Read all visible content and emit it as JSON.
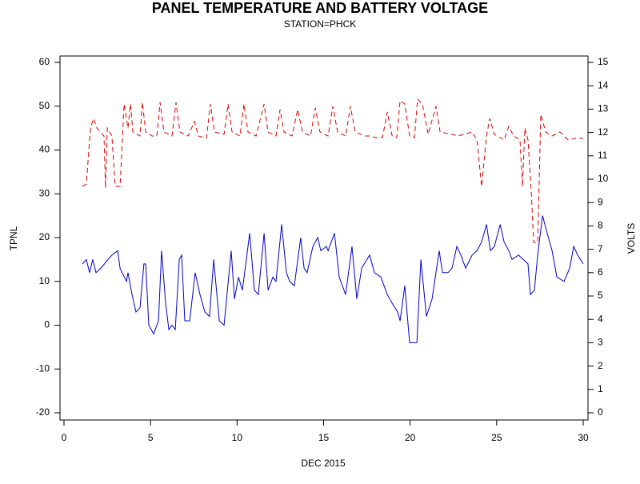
{
  "chart_data": {
    "type": "line",
    "title": "PANEL TEMPERATURE AND BATTERY VOLTAGE",
    "subtitle": "STATION=PHCK",
    "xlabel": "DEC 2015",
    "ylabel": "TPNL",
    "y2label": "VOLTS",
    "xlim": [
      0,
      30
    ],
    "xticks": [
      0,
      5,
      10,
      15,
      20,
      25,
      30
    ],
    "ylim": [
      -20,
      60
    ],
    "yticks": [
      -20,
      -10,
      0,
      10,
      20,
      30,
      40,
      50,
      60
    ],
    "y2lim": [
      0,
      15
    ],
    "y2ticks": [
      0,
      1,
      2,
      3,
      4,
      5,
      6,
      7,
      8,
      9,
      10,
      11,
      12,
      13,
      14,
      15
    ],
    "series": [
      {
        "color": "#0000cc",
        "dash": false,
        "x": [
          1.06,
          1.29,
          1.48,
          1.66,
          1.85,
          2.13,
          2.54,
          2.77,
          3.1,
          3.24,
          3.61,
          3.7,
          3.93,
          4.16,
          4.39,
          4.62,
          4.72,
          4.9,
          5.18,
          5.46,
          5.64,
          5.87,
          6.06,
          6.24,
          6.43,
          6.66,
          6.8,
          6.98,
          7.26,
          7.58,
          7.86,
          8.14,
          8.41,
          8.65,
          8.97,
          9.25,
          9.66,
          9.85,
          10.08,
          10.31,
          10.73,
          11.0,
          11.23,
          11.56,
          11.79,
          12.07,
          12.25,
          12.58,
          12.85,
          13.04,
          13.31,
          13.68,
          13.87,
          14.05,
          14.38,
          14.66,
          14.84,
          15.16,
          15.26,
          15.63,
          15.9,
          16.27,
          16.64,
          16.92,
          17.2,
          17.66,
          17.94,
          18.31,
          18.68,
          18.96,
          19.28,
          19.42,
          19.69,
          19.97,
          20.39,
          20.62,
          20.94,
          21.27,
          21.68,
          21.87,
          22.19,
          22.42,
          22.7,
          22.93,
          23.21,
          23.58,
          23.86,
          24.13,
          24.41,
          24.64,
          24.87,
          25.2,
          25.43,
          25.7,
          25.89,
          26.26,
          26.54,
          26.81,
          26.95,
          27.18,
          27.37,
          27.65,
          27.92,
          28.2,
          28.48,
          28.89,
          29.22,
          29.45,
          29.68,
          30.0
        ],
        "values": [
          14,
          15,
          12,
          15,
          12,
          13,
          15,
          16,
          17,
          13,
          10,
          12,
          7,
          3,
          4,
          14,
          14,
          0,
          -2,
          1,
          17,
          5,
          -1,
          0,
          -1,
          15,
          16,
          1,
          1,
          12,
          7,
          3,
          2,
          15,
          1,
          0,
          17,
          6,
          11,
          8,
          21,
          8,
          7,
          21,
          8,
          11,
          10,
          23,
          12,
          10,
          9,
          20,
          13,
          12,
          18,
          20,
          17,
          18,
          17,
          21,
          11,
          7,
          18,
          6,
          13,
          16,
          12,
          11,
          7,
          5,
          3,
          1,
          9,
          -4,
          -4,
          15,
          2,
          6,
          17,
          12,
          12,
          13,
          18,
          16,
          13,
          16,
          17,
          19,
          23,
          17,
          18,
          23,
          19,
          17,
          15,
          16,
          15,
          14,
          7,
          8,
          16,
          25,
          21,
          17,
          11,
          10,
          13,
          18,
          16,
          14
        ]
      },
      {
        "color": "#dd0000",
        "dash": true,
        "axis": "y2",
        "x": [
          1.06,
          1.29,
          1.53,
          1.71,
          1.9,
          2.31,
          2.4,
          2.5,
          2.77,
          2.96,
          3.24,
          3.47,
          3.7,
          3.84,
          3.98,
          4.39,
          4.53,
          4.72,
          5.09,
          5.36,
          5.55,
          5.78,
          6.24,
          6.47,
          6.7,
          7.17,
          7.54,
          7.77,
          8.23,
          8.46,
          8.69,
          9.25,
          9.48,
          9.71,
          10.17,
          10.4,
          10.63,
          11.1,
          11.56,
          11.79,
          12.25,
          12.48,
          12.71,
          13.18,
          13.5,
          13.78,
          14.24,
          14.52,
          14.79,
          15.26,
          15.53,
          15.81,
          16.27,
          16.55,
          16.83,
          17.38,
          17.66,
          18.03,
          18.4,
          18.68,
          18.96,
          19.23,
          19.42,
          19.69,
          19.97,
          20.25,
          20.43,
          20.71,
          21.04,
          21.27,
          21.5,
          21.73,
          22.42,
          22.75,
          23.12,
          23.58,
          23.86,
          24.13,
          24.41,
          24.6,
          24.87,
          25.43,
          25.7,
          25.98,
          26.35,
          26.49,
          26.63,
          26.81,
          27.0,
          27.14,
          27.37,
          27.55,
          27.83,
          28.2,
          28.66,
          29.13,
          29.59,
          30.0
        ],
        "values": [
          9.69,
          9.79,
          12.19,
          12.6,
          12.19,
          11.85,
          9.62,
          12.19,
          11.85,
          9.69,
          9.69,
          13.22,
          12.19,
          13.22,
          12.02,
          11.85,
          13.29,
          12.02,
          11.85,
          11.85,
          13.29,
          12.02,
          11.85,
          13.29,
          12.02,
          11.85,
          12.47,
          11.85,
          11.75,
          13.22,
          12.02,
          11.92,
          13.22,
          12.02,
          11.85,
          13.22,
          12.02,
          11.85,
          13.22,
          12.02,
          11.85,
          12.98,
          12.02,
          11.85,
          12.98,
          12.02,
          11.85,
          13.05,
          12.02,
          11.85,
          13.12,
          12.02,
          11.85,
          13.12,
          12.02,
          11.85,
          11.85,
          11.78,
          11.78,
          12.88,
          11.85,
          11.78,
          13.36,
          13.22,
          11.85,
          11.78,
          13.42,
          13.22,
          11.92,
          12.53,
          13.12,
          12.02,
          11.92,
          11.85,
          11.92,
          12.02,
          11.68,
          9.69,
          11.85,
          12.6,
          11.92,
          11.68,
          12.26,
          11.85,
          11.68,
          9.69,
          12.19,
          11.68,
          9.45,
          7.29,
          7.29,
          12.77,
          12.02,
          11.85,
          12.02,
          11.68,
          11.75,
          11.75
        ]
      }
    ]
  }
}
